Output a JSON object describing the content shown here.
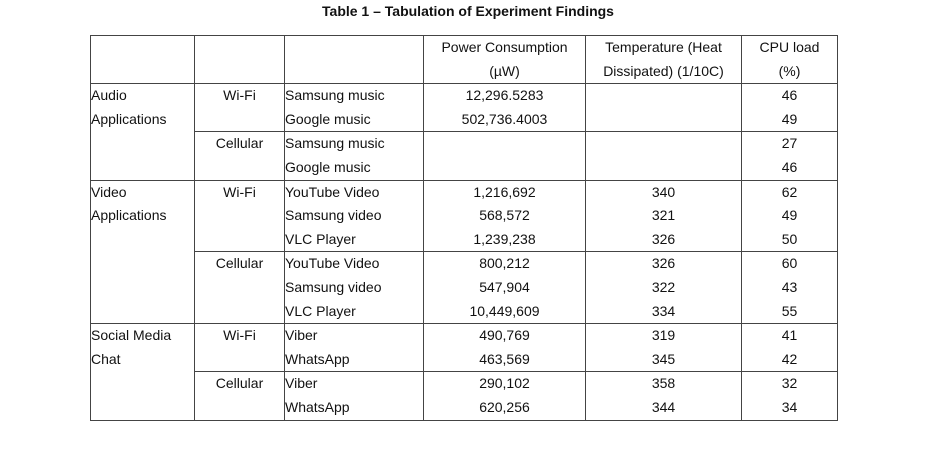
{
  "title": "Table 1 – Tabulation of Experiment Findings",
  "headers": {
    "power": [
      "Power Consumption",
      "(µW)"
    ],
    "temperature": [
      "Temperature (Heat",
      "Dissipated) (1/10C)"
    ],
    "cpu": [
      "CPU load",
      "(%)"
    ]
  },
  "groups": [
    {
      "category": [
        "Audio",
        "Applications"
      ],
      "blocks": [
        {
          "connection": "Wi-Fi",
          "apps": [
            "Samsung music",
            "Google music"
          ],
          "power": [
            "12,296.5283",
            "502,736.4003"
          ],
          "temperature": [
            "",
            ""
          ],
          "cpu": [
            "46",
            "49"
          ]
        },
        {
          "connection": "Cellular",
          "apps": [
            "Samsung music",
            "Google music"
          ],
          "power": [
            "",
            ""
          ],
          "temperature": [
            "",
            ""
          ],
          "cpu": [
            "27",
            "46"
          ]
        }
      ]
    },
    {
      "category": [
        "Video",
        "Applications"
      ],
      "blocks": [
        {
          "connection": "Wi-Fi",
          "apps": [
            "YouTube Video",
            "Samsung video",
            "VLC Player"
          ],
          "power": [
            "1,216,692",
            "568,572",
            "1,239,238"
          ],
          "temperature": [
            "340",
            "321",
            "326"
          ],
          "cpu": [
            "62",
            "49",
            "50"
          ]
        },
        {
          "connection": "Cellular",
          "apps": [
            "YouTube Video",
            "Samsung video",
            "VLC Player"
          ],
          "power": [
            "800,212",
            "547,904",
            "10,449,609"
          ],
          "temperature": [
            "326",
            "322",
            "334"
          ],
          "cpu": [
            "60",
            "43",
            "55"
          ]
        }
      ]
    },
    {
      "category": [
        "Social Media",
        "Chat"
      ],
      "blocks": [
        {
          "connection": "Wi-Fi",
          "apps": [
            "Viber",
            "WhatsApp"
          ],
          "power": [
            "490,769",
            "463,569"
          ],
          "temperature": [
            "319",
            "345"
          ],
          "cpu": [
            "41",
            "42"
          ]
        },
        {
          "connection": "Cellular",
          "apps": [
            "Viber",
            "WhatsApp"
          ],
          "power": [
            "290,102",
            "620,256"
          ],
          "temperature": [
            "358",
            "344"
          ],
          "cpu": [
            "32",
            "34"
          ]
        }
      ]
    }
  ]
}
